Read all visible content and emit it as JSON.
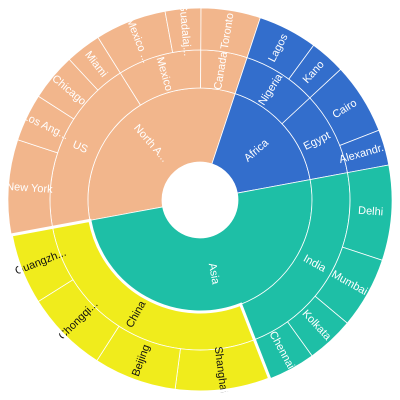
{
  "chart_data": {
    "type": "sunburst",
    "title": "",
    "colors": {
      "North America": "#f2b68c",
      "Africa": "#336ecc",
      "Asia": "#1ebfa6",
      "China": "#f0ec1c",
      "separator": "#ffffff"
    },
    "label_colors": {
      "light": "#ffffff",
      "dark": "#111111"
    },
    "nodes": [
      {
        "name": "North America",
        "label": "North A...",
        "value": 33,
        "color": "North America",
        "label_color": "light",
        "children": [
          {
            "name": "US",
            "label": "US",
            "value": 19,
            "children": [
              {
                "name": "New York",
                "label": "New York",
                "value": 8
              },
              {
                "name": "Los Angeles",
                "label": "Los Ang...",
                "value": 4
              },
              {
                "name": "Chicago",
                "label": "Chicago",
                "value": 4
              },
              {
                "name": "Miami",
                "label": "Miami",
                "value": 3
              }
            ]
          },
          {
            "name": "Mexico",
            "label": "Mexico",
            "value": 9,
            "children": [
              {
                "name": "Mexico City",
                "label": "Mexico ...",
                "value": 6
              },
              {
                "name": "Guadalajara",
                "label": "Guadalaj...",
                "value": 3
              }
            ]
          },
          {
            "name": "Canada",
            "label": "Canada",
            "value": 5,
            "children": [
              {
                "name": "Toronto",
                "label": "Toronto",
                "value": 5
              }
            ]
          }
        ]
      },
      {
        "name": "Africa",
        "label": "Africa",
        "value": 17,
        "color": "Africa",
        "label_color": "light",
        "children": [
          {
            "name": "Nigeria",
            "label": "Nigeria",
            "value": 8,
            "children": [
              {
                "name": "Lagos",
                "label": "Lagos",
                "value": 5
              },
              {
                "name": "Kano",
                "label": "Kano",
                "value": 3
              }
            ]
          },
          {
            "name": "Egypt",
            "label": "Egypt",
            "value": 9,
            "children": [
              {
                "name": "Cairo",
                "label": "Cairo",
                "value": 6
              },
              {
                "name": "Alexandria",
                "label": "Alexandr...",
                "value": 3
              }
            ]
          }
        ]
      },
      {
        "name": "Asia",
        "label": "Asia",
        "value": 50,
        "color": "Asia",
        "label_color": "light",
        "children": [
          {
            "name": "India",
            "label": "India",
            "value": 22,
            "children": [
              {
                "name": "Delhi",
                "label": "Delhi",
                "value": 8
              },
              {
                "name": "Mumbai",
                "label": "Mumbai",
                "value": 6
              },
              {
                "name": "Kolkata",
                "label": "Kolkata",
                "value": 4
              },
              {
                "name": "Chennai",
                "label": "Chennai",
                "value": 4
              }
            ]
          },
          {
            "name": "China",
            "label": "China",
            "value": 28,
            "color": "China",
            "label_color": "dark",
            "children": [
              {
                "name": "Shanghai",
                "label": "Shanghai",
                "value": 8
              },
              {
                "name": "Beijing",
                "label": "Beijing",
                "value": 7
              },
              {
                "name": "Chongqing",
                "label": "Chongqi...",
                "value": 7
              },
              {
                "name": "Guangzhou",
                "label": "Guangzh...",
                "value": 6
              }
            ]
          }
        ]
      }
    ]
  }
}
